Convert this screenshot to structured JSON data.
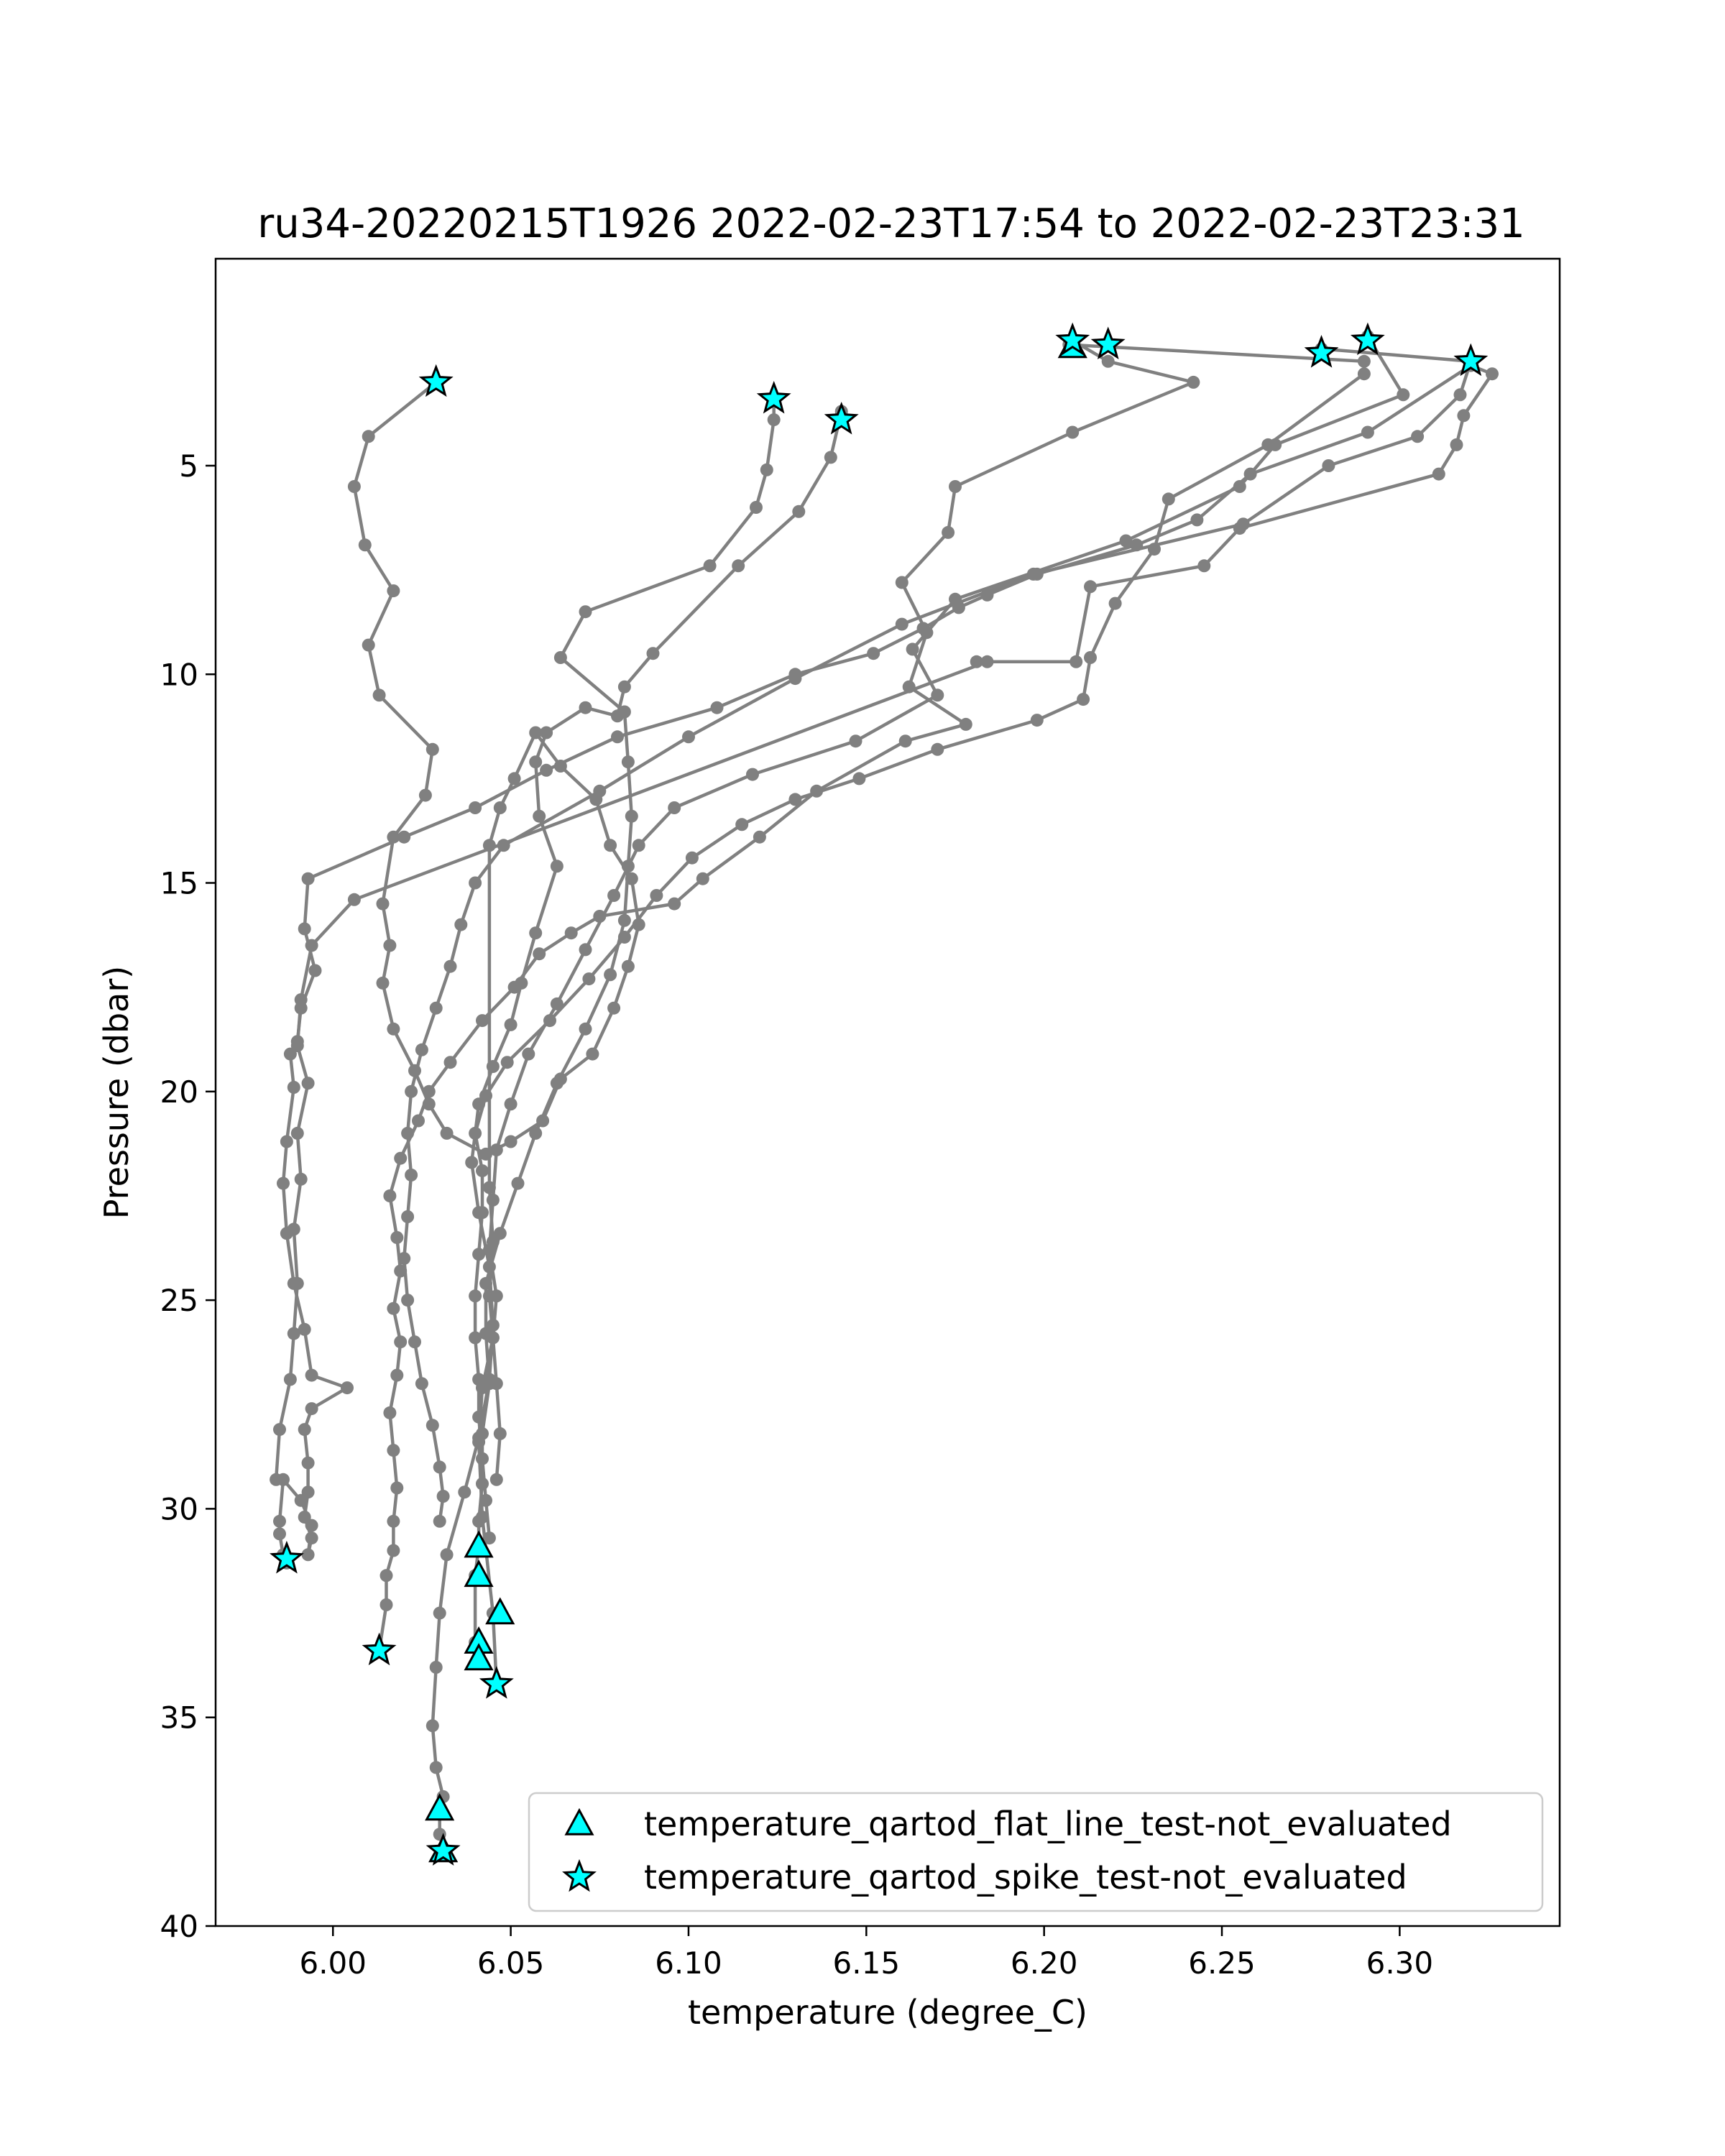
{
  "chart_data": {
    "type": "line",
    "title": "ru34-20220215T1926 2022-02-23T17:54 to 2022-02-23T23:31",
    "xlabel": "temperature (degree_C)",
    "ylabel": "Pressure (dbar)",
    "xlim": [
      5.967,
      6.345
    ],
    "ylim": [
      40,
      0.04
    ],
    "y_inverted": true,
    "xticks": [
      6.0,
      6.05,
      6.1,
      6.15,
      6.2,
      6.25,
      6.3
    ],
    "xtick_labels": [
      "6.00",
      "6.05",
      "6.10",
      "6.15",
      "6.20",
      "6.25",
      "6.30"
    ],
    "yticks": [
      5,
      10,
      15,
      20,
      25,
      30,
      35,
      40
    ],
    "ytick_labels": [
      "5",
      "10",
      "15",
      "20",
      "25",
      "30",
      "35",
      "40"
    ],
    "grid": false,
    "legend_position": "bottom-right",
    "colors": {
      "line": "#808080",
      "marker_fill": "#00ffff",
      "marker_edge": "#000000"
    },
    "profiles": [
      {
        "x": [
          6.029,
          6.01,
          6.006,
          6.009,
          6.017,
          6.01,
          6.013,
          6.028,
          6.026,
          6.017,
          6.014,
          6.016,
          6.014,
          6.017,
          6.023,
          6.027,
          6.032,
          6.043,
          6.05,
          6.059,
          6.064,
          6.073,
          6.079,
          6.083,
          6.086,
          6.084,
          6.078,
          6.074,
          6.064,
          6.057,
          6.051,
          6.047,
          6.044,
          6.044,
          6.045,
          6.044,
          6.045,
          6.042,
          6.041,
          6.042,
          6.045,
          6.046
        ],
        "y": [
          3.0,
          4.3,
          5.5,
          6.9,
          8.0,
          9.3,
          10.5,
          11.8,
          12.9,
          13.9,
          15.5,
          16.5,
          17.4,
          18.5,
          19.5,
          20.3,
          21.0,
          21.5,
          21.2,
          20.7,
          19.7,
          19.1,
          18.0,
          17.0,
          16.0,
          14.9,
          14.1,
          13.0,
          12.2,
          11.4,
          12.5,
          13.2,
          14.1,
          22.3,
          23.6,
          24.9,
          25.9,
          27.1,
          28.4,
          30.2,
          32.5,
          34.2
        ]
      },
      {
        "x": [
          6.124,
          6.124,
          6.122,
          6.119,
          6.106,
          6.071,
          6.064,
          6.082,
          6.083,
          6.084,
          6.083,
          6.082,
          6.078,
          6.071,
          6.063,
          6.057,
          6.052,
          6.047,
          6.043,
          6.043,
          6.044,
          6.042,
          6.042,
          6.041,
          6.041,
          6.04,
          6.04,
          6.041
        ],
        "y": [
          3.4,
          3.9,
          5.1,
          6.0,
          7.4,
          8.5,
          9.6,
          10.9,
          12.1,
          13.4,
          14.6,
          15.9,
          17.2,
          18.5,
          19.8,
          21.0,
          22.2,
          23.4,
          24.6,
          25.8,
          27.0,
          28.2,
          29.4,
          30.3,
          30.9,
          31.6,
          33.2,
          33.6
        ]
      },
      {
        "x": [
          6.143,
          6.14,
          6.131,
          6.114,
          6.09,
          6.082,
          6.08,
          6.071,
          6.06,
          6.057,
          6.058,
          6.063,
          6.057,
          6.053,
          6.05,
          6.045,
          6.041,
          6.039,
          6.041,
          6.044,
          6.045,
          6.044,
          6.041,
          6.037,
          6.032,
          6.03,
          6.029,
          6.028,
          6.029,
          6.031,
          6.03,
          6.03,
          6.031
        ],
        "y": [
          3.7,
          4.8,
          6.1,
          7.4,
          9.5,
          10.3,
          11.0,
          10.8,
          11.4,
          12.1,
          13.4,
          14.6,
          16.2,
          17.4,
          18.4,
          19.4,
          20.3,
          21.7,
          22.9,
          24.2,
          25.6,
          26.9,
          28.3,
          29.6,
          31.1,
          32.5,
          33.8,
          35.2,
          36.2,
          36.9,
          37.2,
          37.8,
          38.2
        ]
      },
      {
        "x": [
          6.208,
          6.218,
          6.242,
          6.208,
          6.175,
          6.173,
          6.16,
          6.167,
          6.162,
          6.178,
          6.161,
          6.136,
          6.12,
          6.104,
          6.096,
          6.075,
          6.067,
          6.058,
          6.051,
          6.042,
          6.033,
          6.027,
          6.024,
          6.019,
          6.016,
          6.018,
          6.019,
          6.017,
          6.019,
          6.018,
          6.016,
          6.017,
          6.018,
          6.017,
          6.017,
          6.015,
          6.015,
          6.013
        ],
        "y": [
          2.0,
          2.5,
          3.0,
          4.2,
          5.5,
          6.6,
          7.8,
          9.0,
          10.3,
          11.2,
          11.6,
          12.8,
          13.9,
          14.9,
          15.5,
          15.8,
          16.2,
          16.7,
          17.5,
          18.3,
          19.3,
          20.0,
          20.7,
          21.6,
          22.5,
          23.5,
          24.3,
          25.2,
          26.0,
          26.8,
          27.7,
          28.6,
          29.5,
          30.3,
          31.0,
          31.6,
          32.3,
          33.4
        ]
      },
      {
        "x": [
          6.207,
          6.29,
          6.29,
          6.263,
          6.235,
          6.231,
          6.22,
          6.213,
          6.211,
          6.198,
          6.17,
          6.148,
          6.13,
          6.115,
          6.101,
          6.091,
          6.082,
          6.072,
          6.061,
          6.049,
          6.043,
          6.04,
          6.042,
          6.042,
          6.041,
          6.04,
          6.04,
          6.041,
          6.041,
          6.042,
          6.043,
          6.044
        ],
        "y": [
          2.1,
          2.5,
          2.8,
          4.5,
          5.8,
          7.0,
          8.3,
          9.6,
          10.6,
          11.1,
          11.8,
          12.5,
          13.0,
          13.6,
          14.4,
          15.3,
          16.3,
          17.3,
          18.3,
          19.3,
          20.1,
          21.0,
          21.9,
          22.9,
          23.9,
          24.9,
          25.9,
          26.9,
          27.8,
          28.8,
          29.8,
          30.7
        ]
      },
      {
        "x": [
          6.291,
          6.301,
          6.265,
          6.255,
          6.223,
          6.175,
          6.163,
          6.17,
          6.147,
          6.118,
          6.096,
          6.086,
          6.079,
          6.071,
          6.063,
          6.055,
          6.05,
          6.046,
          6.045,
          6.044,
          6.046,
          6.045,
          6.046,
          6.047,
          6.046
        ],
        "y": [
          1.9,
          3.3,
          4.5,
          5.5,
          6.8,
          8.2,
          9.4,
          10.5,
          11.6,
          12.4,
          13.2,
          14.1,
          15.3,
          16.6,
          17.9,
          19.1,
          20.3,
          21.4,
          22.6,
          23.8,
          24.9,
          25.9,
          27.0,
          28.2,
          29.3
        ]
      },
      {
        "x": [
          6.278,
          6.32,
          6.317,
          6.305,
          6.28,
          6.256,
          6.197,
          6.16,
          6.13,
          6.1,
          6.075,
          6.048,
          6.04,
          6.036,
          6.033,
          6.029,
          6.025,
          6.022,
          6.021,
          6.022,
          6.021,
          6.02,
          6.021,
          6.023,
          6.025,
          6.028,
          6.03,
          6.031,
          6.03
        ],
        "y": [
          2.2,
          2.5,
          3.3,
          4.3,
          5.0,
          6.4,
          7.6,
          8.8,
          10.1,
          11.5,
          12.8,
          14.1,
          15.0,
          16.0,
          17.0,
          18.0,
          19.0,
          20.0,
          21.0,
          22.0,
          23.0,
          24.0,
          25.0,
          26.0,
          27.0,
          28.0,
          29.0,
          29.7,
          30.3
        ]
      },
      {
        "x": [
          6.32,
          6.326,
          6.318,
          6.316,
          6.311,
          6.255,
          6.245,
          6.213,
          6.209,
          6.181,
          6.184,
          6.006,
          5.994,
          5.991,
          5.99,
          5.993,
          5.99,
          5.991,
          5.989,
          5.99,
          5.989,
          5.988,
          5.985,
          5.984
        ],
        "y": [
          2.6,
          2.8,
          3.8,
          4.5,
          5.2,
          6.5,
          7.4,
          7.9,
          9.7,
          9.7,
          9.7,
          15.4,
          16.5,
          17.8,
          18.9,
          19.8,
          21.0,
          22.1,
          23.3,
          24.6,
          25.8,
          26.9,
          28.1,
          29.3
        ]
      },
      {
        "x": [
          6.32,
          6.291,
          6.258,
          6.243,
          6.226,
          6.198,
          6.184,
          6.176,
          6.166,
          6.152,
          6.13,
          6.108,
          6.08,
          6.06,
          6.04,
          6.02,
          5.993,
          5.992,
          5.995,
          5.991,
          5.99,
          5.988,
          5.989,
          5.987,
          5.986,
          5.987,
          5.989,
          5.992,
          5.994,
          6.004,
          5.994,
          5.992,
          5.993,
          5.993,
          5.992,
          5.994,
          5.993,
          5.994,
          5.991,
          5.986,
          5.985,
          5.985,
          5.986,
          5.987
        ],
        "y": [
          2.6,
          4.2,
          5.2,
          6.3,
          6.9,
          7.6,
          8.1,
          8.4,
          8.9,
          9.5,
          10.0,
          10.8,
          11.5,
          12.3,
          13.2,
          13.9,
          14.9,
          16.1,
          17.1,
          18.0,
          18.8,
          19.1,
          19.9,
          21.2,
          22.2,
          23.4,
          24.6,
          25.7,
          26.8,
          27.1,
          27.6,
          28.1,
          28.9,
          29.6,
          30.2,
          30.7,
          31.1,
          30.4,
          29.8,
          29.3,
          30.3,
          30.6,
          31.1,
          31.3
        ]
      }
    ],
    "series": [
      {
        "name": "temperature_qartod_flat_line_test-not_evaluated",
        "marker": "triangle",
        "points": [
          [
            6.208,
            2.15
          ],
          [
            6.041,
            30.9
          ],
          [
            6.041,
            31.6
          ],
          [
            6.047,
            32.5
          ],
          [
            6.041,
            33.2
          ],
          [
            6.041,
            33.6
          ],
          [
            6.03,
            37.2
          ],
          [
            6.031,
            38.2
          ]
        ]
      },
      {
        "name": "temperature_qartod_spike_test-not_evaluated",
        "marker": "star",
        "points": [
          [
            6.029,
            3.0
          ],
          [
            6.124,
            3.4
          ],
          [
            6.143,
            3.9
          ],
          [
            6.208,
            2.0
          ],
          [
            6.218,
            2.1
          ],
          [
            6.278,
            2.3
          ],
          [
            6.291,
            2.0
          ],
          [
            6.32,
            2.5
          ],
          [
            5.987,
            31.2
          ],
          [
            6.013,
            33.4
          ],
          [
            6.046,
            34.2
          ],
          [
            6.031,
            38.2
          ]
        ]
      }
    ]
  }
}
